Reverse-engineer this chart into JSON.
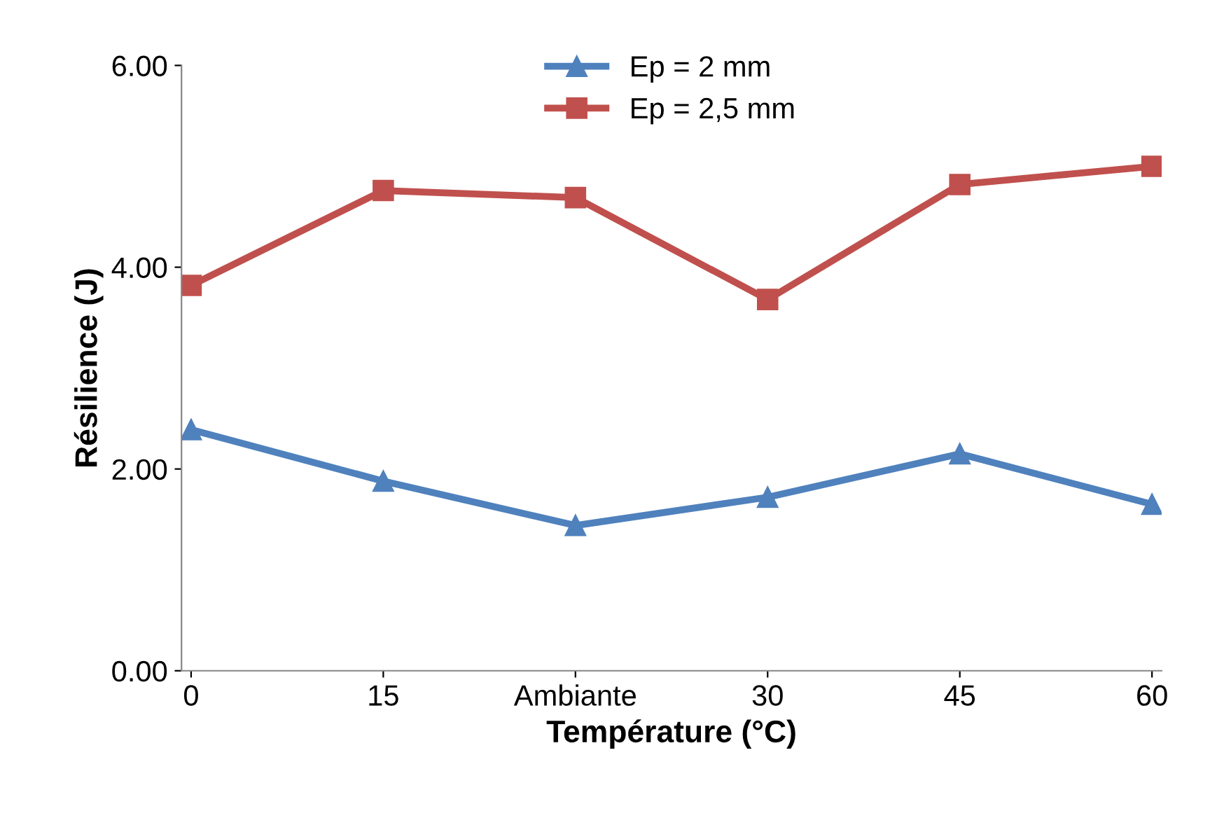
{
  "chart_data": {
    "type": "line",
    "xlabel": "Température (°C)",
    "ylabel": "Résilience (J)",
    "categories": [
      "0",
      "15",
      "Ambiante",
      "30",
      "45",
      "60"
    ],
    "series": [
      {
        "name": "Ep = 2 mm",
        "color": "#4f81bd",
        "marker": "triangle",
        "values": [
          2.39,
          1.88,
          1.44,
          1.72,
          2.15,
          1.65
        ]
      },
      {
        "name": "Ep = 2,5 mm",
        "color": "#c0504d",
        "marker": "square",
        "values": [
          3.82,
          4.76,
          4.69,
          3.68,
          4.82,
          5.0
        ]
      }
    ],
    "ylim": [
      0,
      6
    ],
    "yticks": [
      {
        "value": 0,
        "label": "0.00"
      },
      {
        "value": 2,
        "label": "2.00"
      },
      {
        "value": 4,
        "label": "4.00"
      },
      {
        "value": 6,
        "label": "6.00"
      }
    ],
    "grid": false,
    "legend": "top",
    "line_style": "solid"
  }
}
